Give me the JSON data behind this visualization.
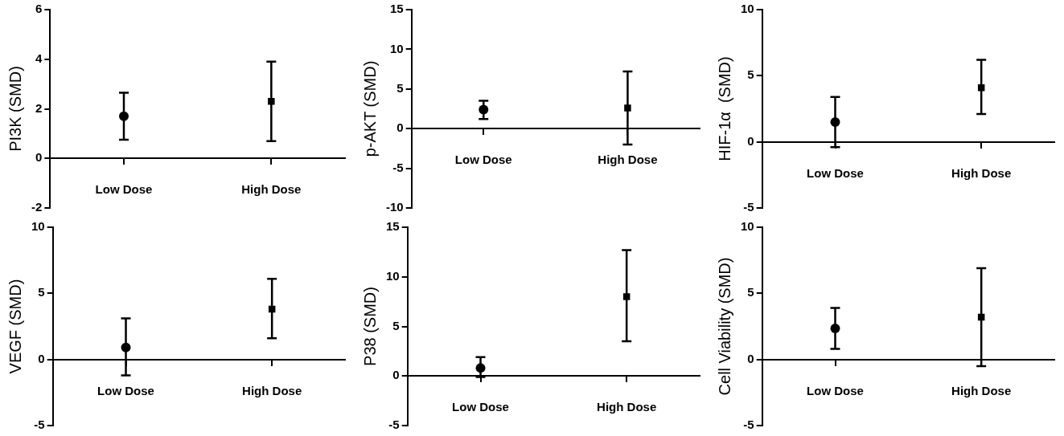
{
  "chart_data": [
    {
      "type": "scatter",
      "ylabel": "PI3K (SMD)",
      "categories": [
        "Low Dose",
        "High Dose"
      ],
      "ylim": [
        -2,
        6
      ],
      "yticks": [
        -2,
        0,
        2,
        4,
        6
      ],
      "grid": false,
      "legend": false,
      "series": [
        {
          "color": "#000000",
          "marker": "circle",
          "values": [
            1.7,
            null
          ],
          "errors": [
            [
              0.75,
              2.65
            ],
            null
          ]
        },
        {
          "color": "#000000",
          "marker": "square",
          "values": [
            null,
            2.3
          ],
          "errors": [
            null,
            [
              0.7,
              3.9
            ]
          ]
        }
      ]
    },
    {
      "type": "scatter",
      "ylabel": "p-AKT (SMD)",
      "categories": [
        "Low Dose",
        "High Dose"
      ],
      "ylim": [
        -10,
        15
      ],
      "yticks": [
        -10,
        -5,
        0,
        5,
        10,
        15
      ],
      "grid": false,
      "legend": false,
      "series": [
        {
          "color": "#000000",
          "marker": "circle",
          "values": [
            2.4,
            null
          ],
          "errors": [
            [
              1.2,
              3.5
            ],
            null
          ]
        },
        {
          "color": "#000000",
          "marker": "square",
          "values": [
            null,
            2.6
          ],
          "errors": [
            null,
            [
              -2.0,
              7.2
            ]
          ]
        }
      ]
    },
    {
      "type": "scatter",
      "ylabel": "HIF-1α  (SMD)",
      "categories": [
        "Low Dose",
        "High Dose"
      ],
      "ylim": [
        -5,
        10
      ],
      "yticks": [
        -5,
        0,
        5,
        10
      ],
      "grid": false,
      "legend": false,
      "series": [
        {
          "color": "#000000",
          "marker": "circle",
          "values": [
            1.5,
            null
          ],
          "errors": [
            [
              -0.4,
              3.4
            ],
            null
          ]
        },
        {
          "color": "#000000",
          "marker": "square",
          "values": [
            null,
            4.1
          ],
          "errors": [
            null,
            [
              2.1,
              6.2
            ]
          ]
        }
      ]
    },
    {
      "type": "scatter",
      "ylabel": "VEGF (SMD)",
      "categories": [
        "Low Dose",
        "High Dose"
      ],
      "ylim": [
        -5,
        10
      ],
      "yticks": [
        -5,
        0,
        5,
        10
      ],
      "grid": false,
      "legend": false,
      "series": [
        {
          "color": "#000000",
          "marker": "circle",
          "values": [
            0.9,
            null
          ],
          "errors": [
            [
              -1.2,
              3.1
            ],
            null
          ]
        },
        {
          "color": "#000000",
          "marker": "square",
          "values": [
            null,
            3.8
          ],
          "errors": [
            null,
            [
              1.6,
              6.1
            ]
          ]
        }
      ]
    },
    {
      "type": "scatter",
      "ylabel": "P38 (SMD)",
      "categories": [
        "Low Dose",
        "High Dose"
      ],
      "ylim": [
        -5,
        15
      ],
      "yticks": [
        -5,
        0,
        5,
        10,
        15
      ],
      "grid": false,
      "legend": false,
      "series": [
        {
          "color": "#000000",
          "marker": "circle",
          "values": [
            0.8,
            null
          ],
          "errors": [
            [
              -0.1,
              1.9
            ],
            null
          ]
        },
        {
          "color": "#000000",
          "marker": "square",
          "values": [
            null,
            8.0
          ],
          "errors": [
            null,
            [
              3.5,
              12.7
            ]
          ]
        }
      ]
    },
    {
      "type": "scatter",
      "ylabel": "Cell Viability (SMD)",
      "categories": [
        "Low Dose",
        "High Dose"
      ],
      "ylim": [
        -5,
        10
      ],
      "yticks": [
        -5,
        0,
        5,
        10
      ],
      "grid": false,
      "legend": false,
      "series": [
        {
          "color": "#000000",
          "marker": "circle",
          "values": [
            2.35,
            null
          ],
          "errors": [
            [
              0.8,
              3.9
            ],
            null
          ]
        },
        {
          "color": "#000000",
          "marker": "square",
          "values": [
            null,
            3.2
          ],
          "errors": [
            null,
            [
              -0.5,
              6.9
            ]
          ]
        }
      ]
    }
  ]
}
